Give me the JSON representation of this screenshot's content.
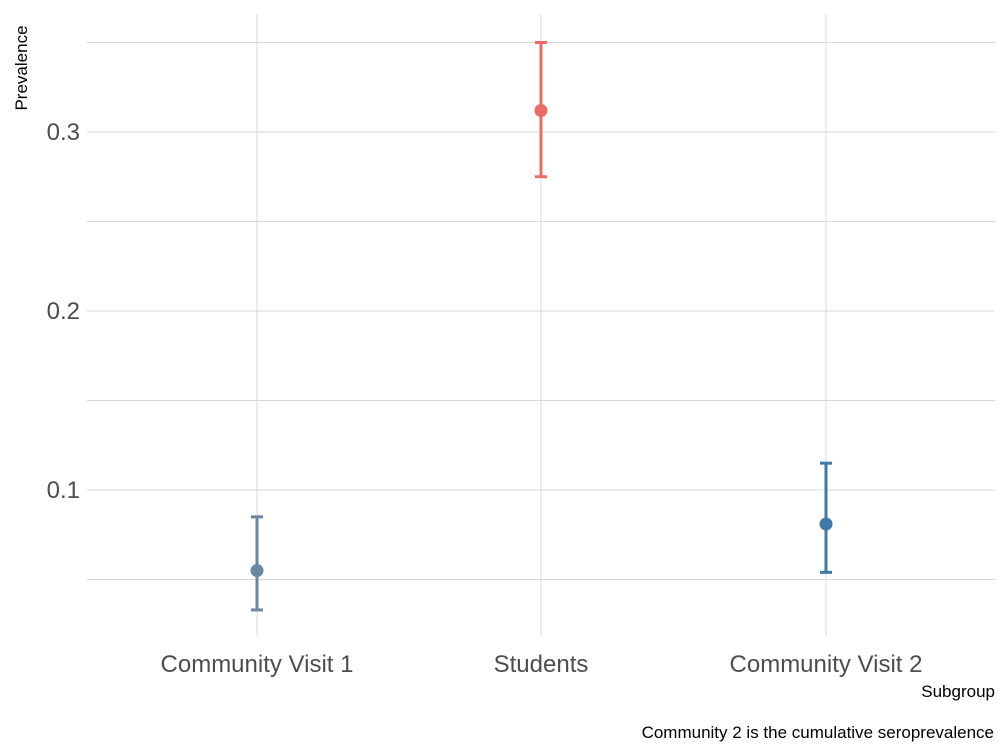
{
  "chart_data": {
    "type": "scatter",
    "title": "",
    "xlabel": "Subgroup",
    "ylabel": "Prevalence",
    "caption": "Community 2 is the cumulative seroprevalence",
    "categories": [
      "Community Visit 1",
      "Students",
      "Community Visit 2"
    ],
    "points": [
      {
        "category": "Community Visit 1",
        "value": 0.055,
        "lower": 0.033,
        "upper": 0.085,
        "color": "#6a87a6"
      },
      {
        "category": "Students",
        "value": 0.312,
        "lower": 0.275,
        "upper": 0.35,
        "color": "#ec6b64"
      },
      {
        "category": "Community Visit 2",
        "value": 0.081,
        "lower": 0.054,
        "upper": 0.115,
        "color": "#3d7aa9"
      }
    ],
    "y_ticks": [
      0.1,
      0.2,
      0.3
    ],
    "y_tick_labels": [
      "0.1",
      "0.2",
      "0.3"
    ],
    "ylim": [
      0.02,
      0.365
    ],
    "grid": true,
    "legend": "none",
    "colors": {
      "grid": "#d9d9d9",
      "tick_text": "#4d4d4d",
      "title_text": "#000000"
    }
  }
}
